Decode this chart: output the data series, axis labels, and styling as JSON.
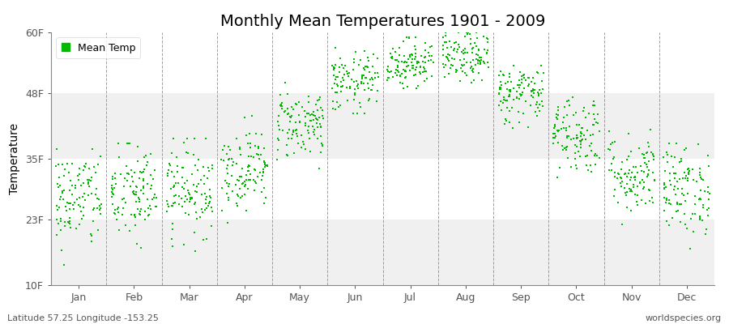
{
  "title": "Monthly Mean Temperatures 1901 - 2009",
  "ylabel": "Temperature",
  "subtitle_left": "Latitude 57.25 Longitude -153.25",
  "subtitle_right": "worldspecies.org",
  "legend_label": "Mean Temp",
  "dot_color": "#00bb00",
  "bg_color": "#ffffff",
  "plot_bg_color": "#ffffff",
  "band_color_light": "#f0f0f0",
  "band_color_white": "#ffffff",
  "ytick_labels": [
    "10F",
    "23F",
    "35F",
    "48F",
    "60F"
  ],
  "ytick_values": [
    10,
    23,
    35,
    48,
    60
  ],
  "months": [
    "Jan",
    "Feb",
    "Mar",
    "Apr",
    "May",
    "Jun",
    "Jul",
    "Aug",
    "Sep",
    "Oct",
    "Nov",
    "Dec"
  ],
  "month_means": [
    27,
    28,
    29,
    33,
    42,
    50,
    54,
    55,
    48,
    40,
    32,
    29
  ],
  "month_stds": [
    5,
    5,
    4.5,
    4,
    3.5,
    3,
    2.5,
    2.5,
    3,
    4,
    4,
    4.5
  ],
  "month_mins": [
    14,
    14,
    16,
    22,
    33,
    44,
    49,
    50,
    40,
    30,
    22,
    16
  ],
  "month_maxs": [
    37,
    38,
    39,
    44,
    50,
    57,
    59,
    60,
    55,
    50,
    42,
    38
  ],
  "n_years": 109,
  "seed": 42,
  "ylim": [
    10,
    60
  ],
  "xlim_min": -0.5,
  "xlim_max": 11.5,
  "dot_size": 3,
  "dot_marker": "s",
  "title_fontsize": 14,
  "axis_label_fontsize": 10,
  "tick_fontsize": 9,
  "legend_fontsize": 9,
  "annot_fontsize": 8
}
